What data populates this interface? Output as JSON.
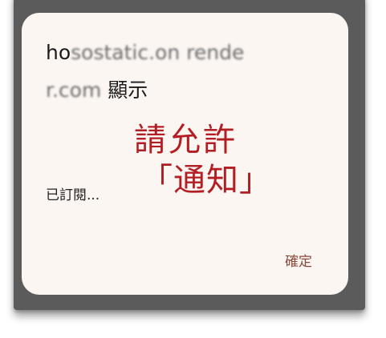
{
  "dialog": {
    "origin_prefix": "ho",
    "origin_blurred_1": "sostatic.on",
    "origin_blurred_2": "render.com",
    "origin_suffix": " 顯示",
    "subtitle": "已訂閱...",
    "confirm_label": "確定"
  },
  "annotation": {
    "line1": "請允許",
    "line2": "「通知」"
  },
  "colors": {
    "dialog_bg": "#fbf6f2",
    "frame": "#5b5b5b",
    "annotation": "#b21e23",
    "confirm": "#8a4a3a"
  }
}
